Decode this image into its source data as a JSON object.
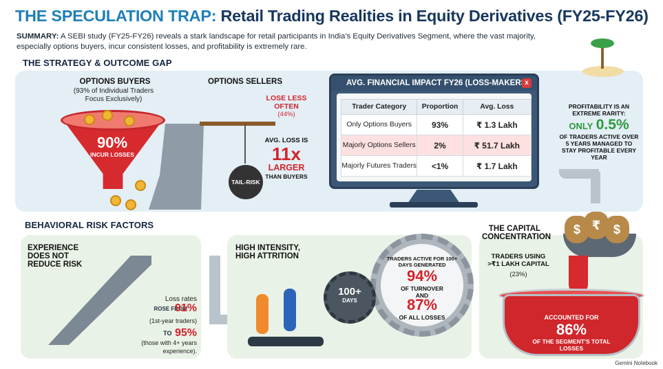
{
  "header": {
    "title_accent": "THE SPECULATION TRAP:",
    "title_rest": "Retail Trading Realities in Equity Derivatives (FY25-FY26)",
    "summary_label": "SUMMARY:",
    "summary_text": "A SEBI study (FY25-FY26) reveals a stark landscape for retail participants in India's Equity Derivatives Segment, where the vast majority, especially options buyers, incur consistent losses, and profitability is extremely rare."
  },
  "strategy": {
    "heading": "THE STRATEGY & OUTCOME GAP",
    "buyers_title": "OPTIONS BUYERS",
    "buyers_sub": "(93% of Individual Traders Focus Exclusively)",
    "buyers_pct": "90%",
    "buyers_pct_label": "INCUR LOSSES",
    "sellers_title": "OPTIONS SELLERS",
    "sellers_lose": "LOSE LESS OFTEN",
    "sellers_lose_pct": "(44%)",
    "avg_loss_label": "AVG. LOSS IS",
    "avg_loss_value": "11x",
    "avg_loss_larger": "LARGER",
    "avg_loss_than": "THAN BUYERS",
    "tail_risk": "TAIL-RISK"
  },
  "impact_table": {
    "title": "AVG. FINANCIAL IMPACT FY26 (LOSS-MAKERS)",
    "close": "x",
    "headers": [
      "Trader Category",
      "Proportion",
      "Avg. Loss"
    ],
    "rows": [
      [
        "Only Options Buyers",
        "93%",
        "₹ 1.3 Lakh"
      ],
      [
        "Majorly Options Sellers",
        "2%",
        "₹ 51.7 Lakh"
      ],
      [
        "Majorly Futures Traders",
        "<1%",
        "₹ 1.7 Lakh"
      ]
    ]
  },
  "profitability": {
    "line1": "PROFITABILITY IS AN EXTREME RARITY:",
    "only": "ONLY",
    "value": "0.5%",
    "line2": "OF TRADERS ACTIVE OVER 5 YEARS MANAGED TO STAY PROFITABLE EVERY YEAR"
  },
  "behavioral": {
    "heading": "BEHAVIORAL RISK FACTORS",
    "experience_title": "EXPERIENCE DOES NOT REDUCE RISK",
    "loss_rates": "Loss rates",
    "rose_from": "ROSE FROM",
    "first_pct": "91%",
    "first_label": "(1st-year traders)",
    "to": "TO",
    "second_pct": "95%",
    "second_label": "(those with 4+ years experience)."
  },
  "intensity": {
    "title": "HIGH INTENSITY, HIGH ATTRITION",
    "traders_active": "TRADERS ACTIVE FOR 100+ DAYS GENERATED",
    "turnover_pct": "94%",
    "turnover_label": "OF TURNOVER",
    "and": "AND",
    "losses_pct": "87%",
    "losses_label": "OF ALL LOSSES",
    "days_value": "100+",
    "days_label": "DAYS"
  },
  "capital": {
    "title": "THE CAPITAL CONCENTRATION",
    "using_label": "TRADERS USING >₹1 LAKH CAPITAL",
    "using_pct": "(23%)",
    "accounted": "ACCOUNTED FOR",
    "accounted_pct": "86%",
    "accounted_label": "OF THE SEGMENT'S TOTAL LOSSES",
    "bag_symbols": [
      "$",
      "₹",
      "$"
    ]
  },
  "footer": {
    "brand": "Gemini Notebook"
  }
}
